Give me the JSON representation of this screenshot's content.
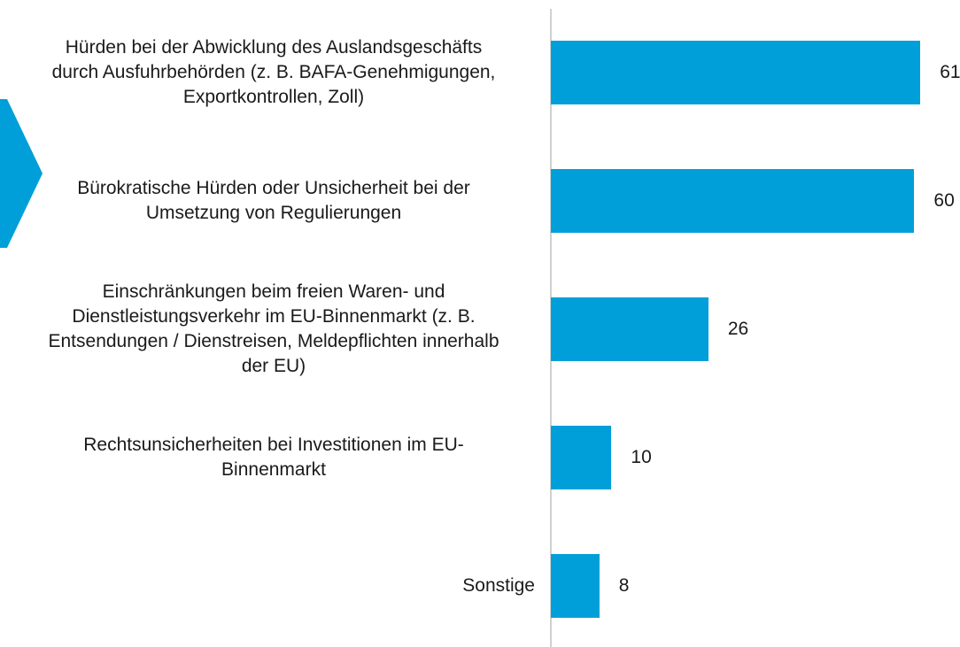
{
  "chart_data": {
    "type": "bar",
    "orientation": "horizontal",
    "color": "#009fd9",
    "categories": [
      "Hürden bei der Abwicklung des Auslandsgeschäfts\ndurch Ausfuhrbehörden (z. B. BAFA-Genehmigungen,\nExportkontrollen, Zoll)",
      "Bürokratische Hürden oder Unsicherheit bei der\nUmsetzung von Regulierungen",
      "Einschränkungen beim freien Waren- und\nDienstleistungsverkehr im EU-Binnenmarkt (z. B.\nEntsendungen / Dienstreisen, Meldepflichten innerhalb\nder EU)",
      "Rechtsunsicherheiten bei Investitionen im EU-\nBinnenmarkt",
      "Sonstige"
    ],
    "values": [
      61,
      60,
      26,
      10,
      8
    ]
  }
}
